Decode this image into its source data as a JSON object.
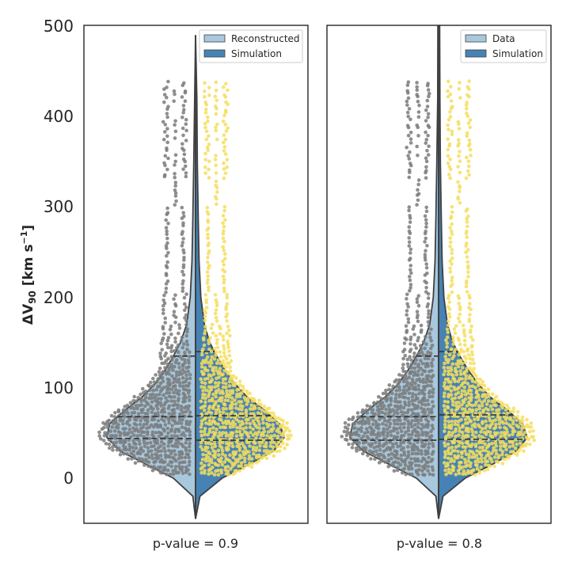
{
  "chart_data": {
    "type": "violin",
    "ylabel": "ΔV₉₀ [km s⁻¹]",
    "ylabel_main": "ΔV",
    "ylabel_sub": "90",
    "ylabel_units": " [km s",
    "ylabel_exp": "−1",
    "ylabel_close": "]",
    "ylim": [
      -50,
      500
    ],
    "yticks": [
      0,
      100,
      200,
      300,
      400,
      500
    ],
    "colors": {
      "left": "#a8c8dd",
      "right": "#4682b4",
      "dots_left": "#7a7a7a",
      "dots_right": "#f5de5e",
      "outline": "#404040"
    },
    "panels": [
      {
        "xlabel": "p-value = 0.9",
        "legend": [
          "Reconstructed",
          "Simulation"
        ],
        "left": {
          "name": "Reconstructed",
          "quartiles": [
            44,
            68,
            135
          ],
          "profile": [
            [
              -45,
              0
            ],
            [
              -20,
              0.03
            ],
            [
              0,
              0.25
            ],
            [
              15,
              0.55
            ],
            [
              30,
              0.85
            ],
            [
              45,
              1.0
            ],
            [
              60,
              0.97
            ],
            [
              75,
              0.8
            ],
            [
              90,
              0.6
            ],
            [
              105,
              0.45
            ],
            [
              120,
              0.34
            ],
            [
              135,
              0.25
            ],
            [
              150,
              0.17
            ],
            [
              170,
              0.1
            ],
            [
              200,
              0.06
            ],
            [
              240,
              0.04
            ],
            [
              290,
              0.03
            ],
            [
              350,
              0.02
            ],
            [
              420,
              0.01
            ],
            [
              490,
              0
            ]
          ]
        },
        "right": {
          "name": "Simulation",
          "quartiles": [
            42,
            69,
            140
          ],
          "profile": [
            [
              -45,
              0
            ],
            [
              -20,
              0.05
            ],
            [
              0,
              0.3
            ],
            [
              15,
              0.6
            ],
            [
              30,
              0.88
            ],
            [
              45,
              1.0
            ],
            [
              60,
              0.95
            ],
            [
              75,
              0.78
            ],
            [
              90,
              0.58
            ],
            [
              105,
              0.44
            ],
            [
              120,
              0.33
            ],
            [
              135,
              0.24
            ],
            [
              150,
              0.16
            ],
            [
              170,
              0.1
            ],
            [
              200,
              0.06
            ],
            [
              240,
              0.04
            ],
            [
              290,
              0.03
            ],
            [
              350,
              0.02
            ],
            [
              420,
              0.015
            ],
            [
              490,
              0
            ]
          ]
        }
      },
      {
        "xlabel": "p-value = 0.8",
        "legend": [
          "Data",
          "Simulation"
        ],
        "left": {
          "name": "Data",
          "quartiles": [
            42,
            68,
            135
          ],
          "profile": [
            [
              -45,
              0
            ],
            [
              -20,
              0.03
            ],
            [
              0,
              0.25
            ],
            [
              15,
              0.55
            ],
            [
              30,
              0.85
            ],
            [
              45,
              1.0
            ],
            [
              60,
              0.97
            ],
            [
              75,
              0.8
            ],
            [
              90,
              0.6
            ],
            [
              105,
              0.45
            ],
            [
              120,
              0.34
            ],
            [
              135,
              0.25
            ],
            [
              150,
              0.17
            ],
            [
              170,
              0.1
            ],
            [
              200,
              0.06
            ],
            [
              240,
              0.04
            ],
            [
              290,
              0.03
            ],
            [
              350,
              0.02
            ],
            [
              420,
              0.01
            ],
            [
              500,
              0.008
            ]
          ]
        },
        "right": {
          "name": "Simulation",
          "quartiles": [
            43,
            70,
            140
          ],
          "profile": [
            [
              -45,
              0
            ],
            [
              -20,
              0.05
            ],
            [
              0,
              0.3
            ],
            [
              15,
              0.6
            ],
            [
              30,
              0.88
            ],
            [
              45,
              1.0
            ],
            [
              60,
              0.95
            ],
            [
              75,
              0.78
            ],
            [
              90,
              0.58
            ],
            [
              105,
              0.44
            ],
            [
              120,
              0.33
            ],
            [
              135,
              0.24
            ],
            [
              150,
              0.16
            ],
            [
              170,
              0.1
            ],
            [
              200,
              0.06
            ],
            [
              240,
              0.04
            ],
            [
              290,
              0.03
            ],
            [
              350,
              0.02
            ],
            [
              420,
              0.015
            ],
            [
              500,
              0.012
            ]
          ]
        }
      }
    ]
  }
}
